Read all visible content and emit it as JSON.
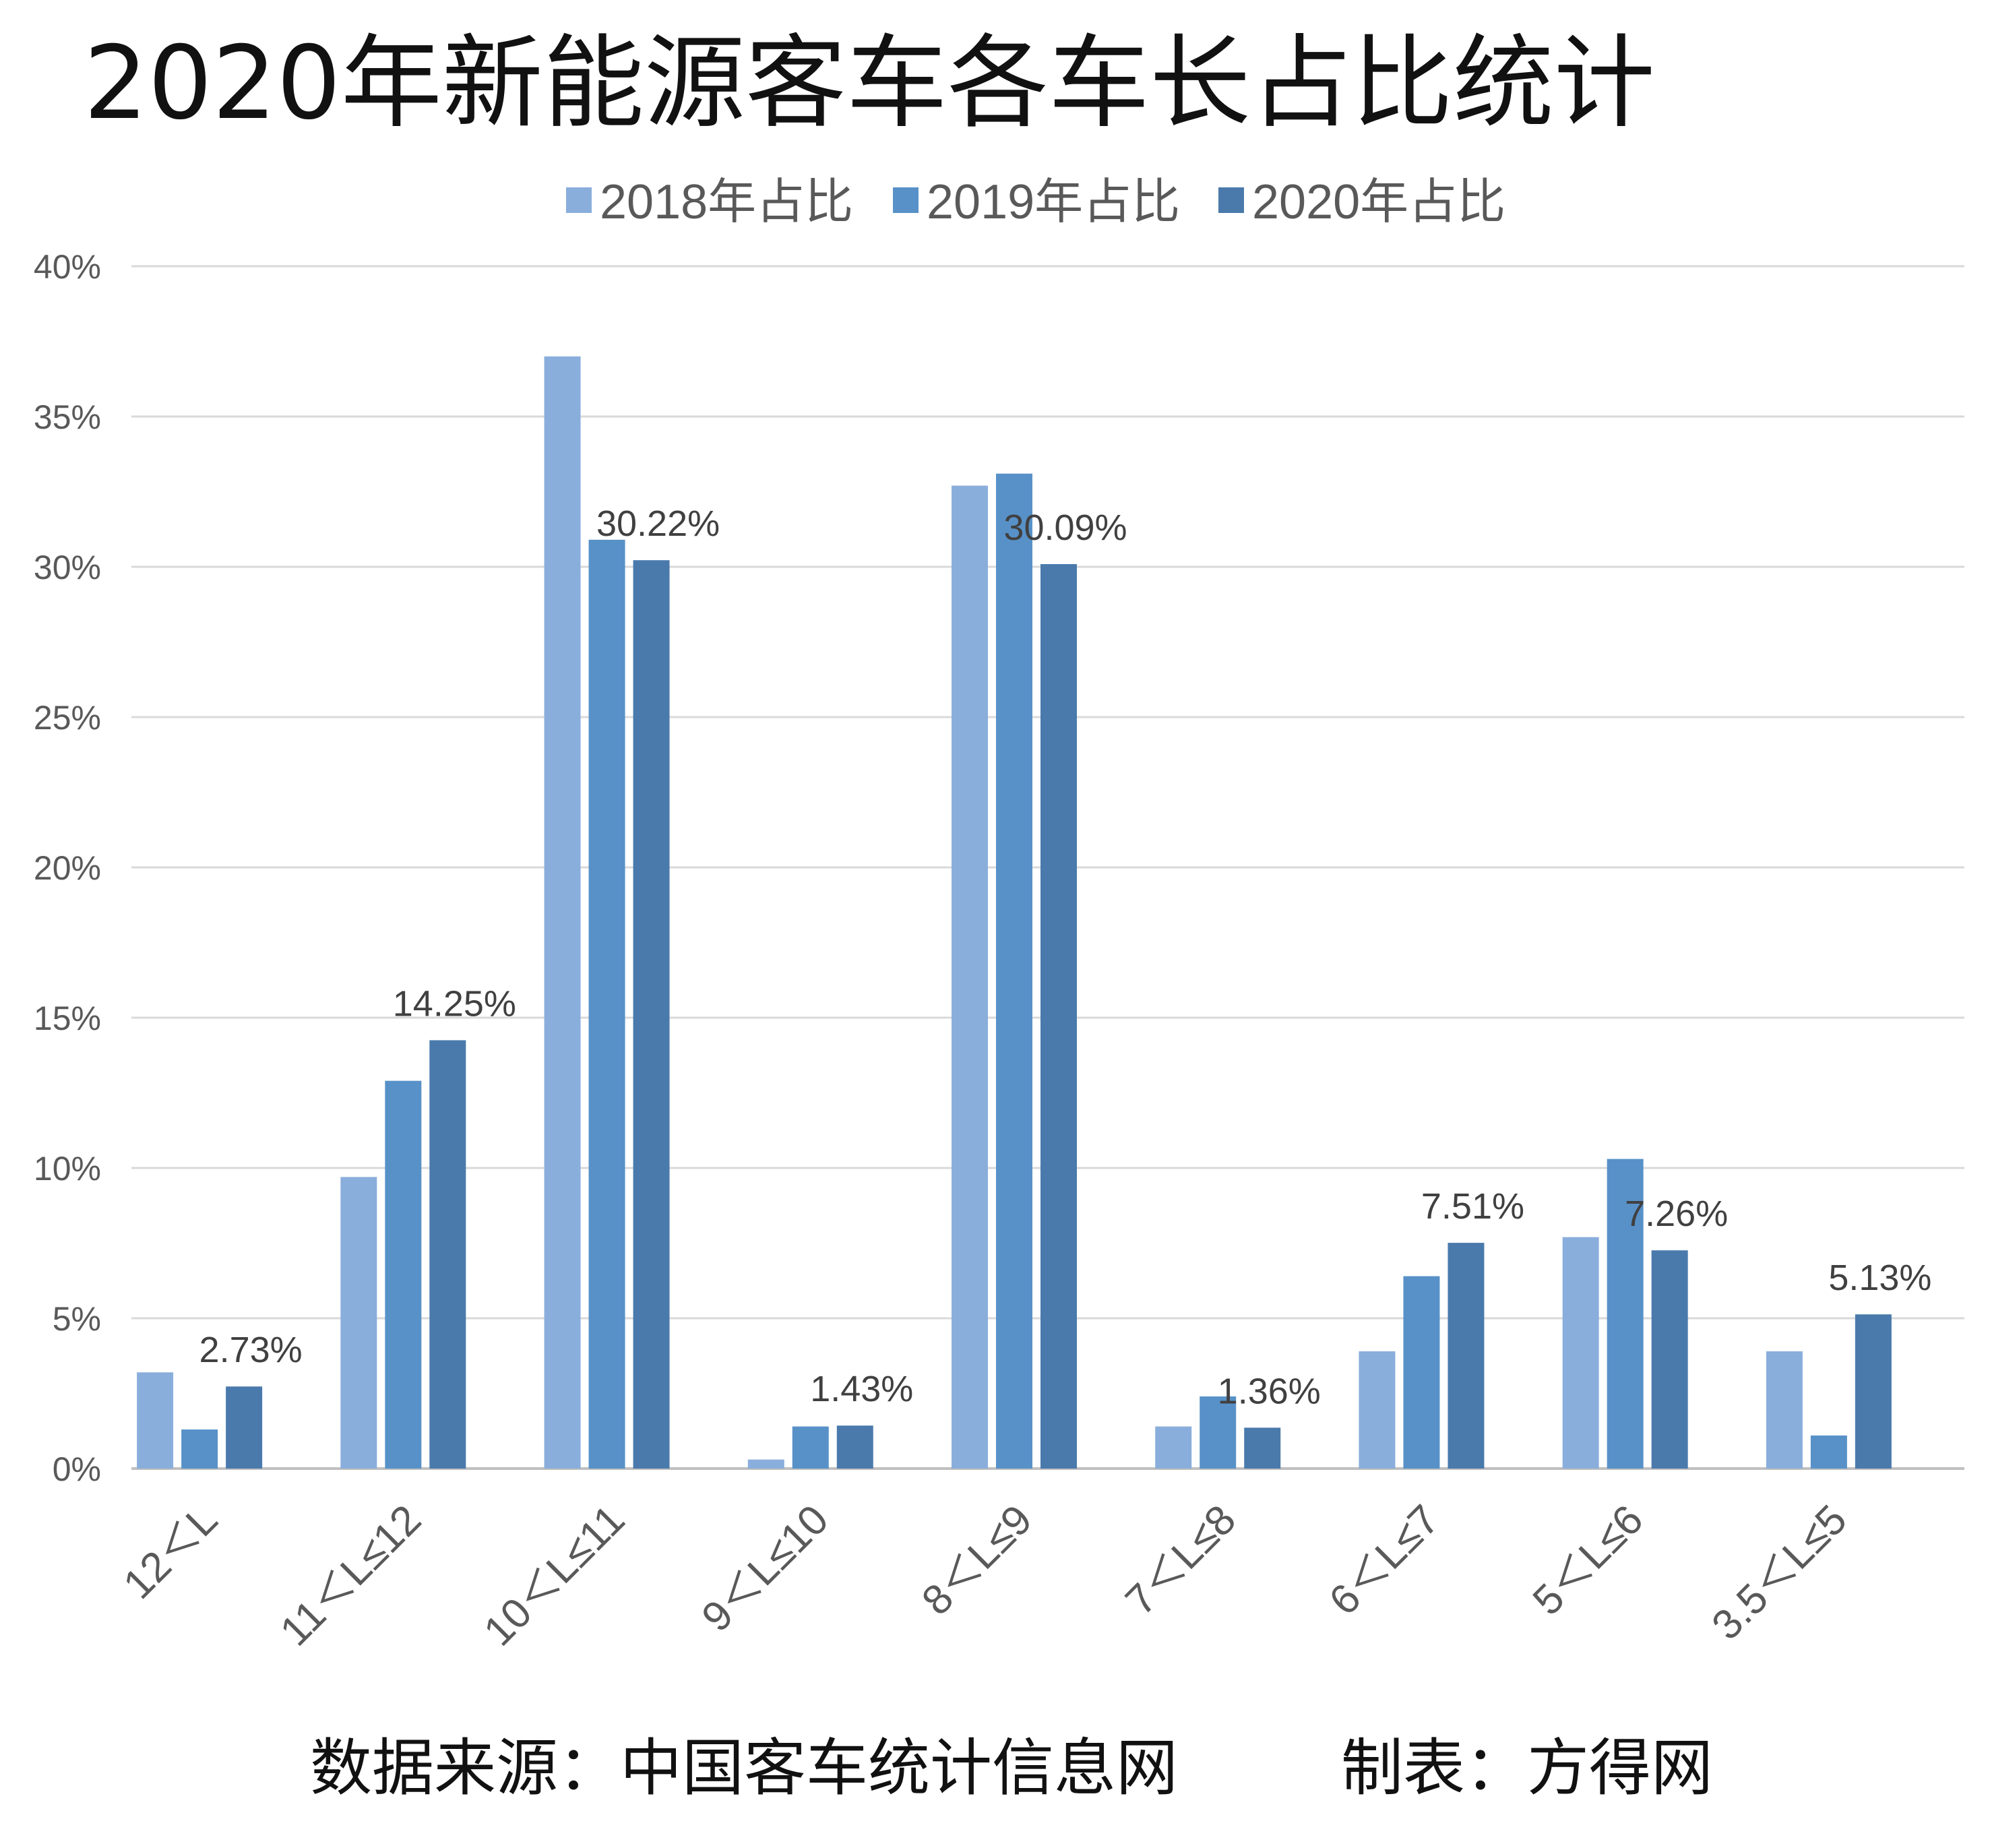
{
  "chart_data": {
    "type": "bar",
    "title": "2020年新能源客车各车长占比统计",
    "categories": [
      "12＜L",
      "11＜L≤12",
      "10＜L≤11",
      "9＜L≤10",
      "8＜L≤9",
      "7＜L≤8",
      "6＜L≤7",
      "5＜L≤6",
      "3.5＜L≤5"
    ],
    "series": [
      {
        "name": "2018年占比",
        "color": "#8aaedc",
        "values": [
          3.2,
          9.7,
          37.0,
          0.3,
          32.7,
          1.4,
          3.9,
          7.7,
          3.9
        ]
      },
      {
        "name": "2019年占比",
        "color": "#5891c8",
        "values": [
          1.3,
          12.9,
          30.9,
          1.4,
          33.1,
          2.4,
          6.4,
          10.3,
          1.1
        ]
      },
      {
        "name": "2020年占比",
        "color": "#4a7aac",
        "values": [
          2.73,
          14.25,
          30.22,
          1.43,
          30.09,
          1.36,
          7.51,
          7.26,
          5.13
        ]
      }
    ],
    "data_labels": [
      "2.73%",
      "14.25%",
      "30.22%",
      "1.43%",
      "30.09%",
      "1.36%",
      "7.51%",
      "7.26%",
      "5.13%"
    ],
    "y_ticks": [
      "0%",
      "5%",
      "10%",
      "15%",
      "20%",
      "25%",
      "30%",
      "35%",
      "40%"
    ],
    "ylim": [
      0,
      40
    ],
    "y_unit": "%",
    "grid": true,
    "legend_position": "top-center",
    "xlabel": "",
    "ylabel": ""
  },
  "footer": {
    "source": "数据来源：中国客车统计信息网",
    "maker": "制表：方得网"
  }
}
